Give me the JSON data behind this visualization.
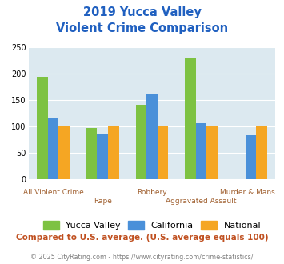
{
  "title_line1": "2019 Yucca Valley",
  "title_line2": "Violent Crime Comparison",
  "categories": [
    "All Violent Crime",
    "Rape",
    "Robbery",
    "Aggravated Assault",
    "Murder & Mans..."
  ],
  "yucca_valley": [
    195,
    98,
    141,
    230,
    0
  ],
  "california": [
    117,
    87,
    163,
    106,
    84
  ],
  "national": [
    100,
    100,
    100,
    100,
    100
  ],
  "colors": {
    "yucca_valley": "#7dc242",
    "california": "#4a90d9",
    "national": "#f5a623"
  },
  "ylim": [
    0,
    250
  ],
  "yticks": [
    0,
    50,
    100,
    150,
    200,
    250
  ],
  "title_color": "#2060c0",
  "xlabel_color": "#a06030",
  "background_color": "#dce9f0",
  "footer_text": "Compared to U.S. average. (U.S. average equals 100)",
  "copyright_text": "© 2025 CityRating.com - https://www.cityrating.com/crime-statistics/",
  "footer_color": "#c05020",
  "copyright_color": "#808080",
  "legend_labels": [
    "Yucca Valley",
    "California",
    "National"
  ],
  "bar_width": 0.22
}
